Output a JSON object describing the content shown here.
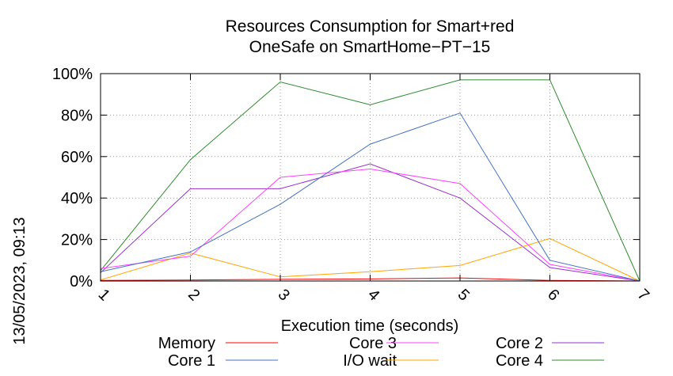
{
  "timestamp": "13/05/2023, 09:13",
  "chart_data": {
    "type": "line",
    "title": "Resources Consumption for Smart+red",
    "subtitle": "OneSafe on SmartHome−PT−15",
    "xlabel": "Execution time (seconds)",
    "ylabel": "",
    "x": [
      1,
      2,
      3,
      4,
      5,
      6,
      7
    ],
    "xlim": [
      1,
      7
    ],
    "ylim": [
      0,
      100
    ],
    "x_ticks": [
      "1",
      "2",
      "3",
      "4",
      "5",
      "6",
      "7"
    ],
    "y_ticks": [
      "0%",
      "20%",
      "40%",
      "60%",
      "80%",
      "100%"
    ],
    "grid": true,
    "legend_position": "bottom",
    "series": [
      {
        "name": "Memory",
        "color": "#ff0000",
        "values": [
          0.3,
          0.5,
          0.8,
          1.0,
          1.5,
          0.3,
          0
        ]
      },
      {
        "name": "Core 1",
        "color": "#4472c4",
        "values": [
          4.5,
          14,
          37,
          66,
          81,
          10,
          0
        ]
      },
      {
        "name": "Core 3",
        "color": "#ff40ff",
        "values": [
          6,
          12,
          50,
          54,
          47,
          8,
          0
        ]
      },
      {
        "name": "I/O wait",
        "color": "#ffa500",
        "values": [
          0.5,
          13.5,
          2,
          4.5,
          7.5,
          20.5,
          0
        ]
      },
      {
        "name": "Core 2",
        "color": "#9932cc",
        "values": [
          4,
          44.5,
          44.5,
          56.5,
          40,
          6.5,
          0
        ]
      },
      {
        "name": "Core 4",
        "color": "#2e8b2e",
        "values": [
          5,
          58.5,
          96,
          85,
          97,
          97,
          0
        ]
      }
    ]
  }
}
